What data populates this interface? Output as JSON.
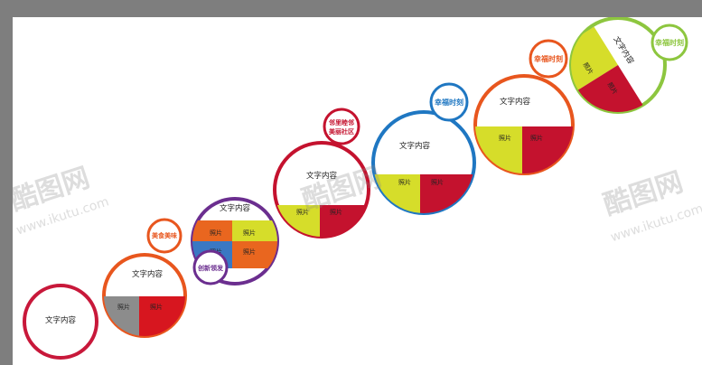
{
  "watermark": {
    "brand": "酷图网",
    "url": "www.ikutu.com"
  },
  "bubbles": [
    {
      "id": 1,
      "color": "#c8183a",
      "text": "文字内容",
      "photos": []
    },
    {
      "id": 2,
      "color": "#e8561e",
      "text": "文字内容",
      "tag": "美食美味",
      "photos": [
        "照片",
        "照片"
      ],
      "photo_colors": [
        "#8c8c8c",
        "#d7161f"
      ]
    },
    {
      "id": 3,
      "color": "#6b2e8f",
      "text": "文字内容",
      "tag": "创新领发",
      "photos": [
        "照片",
        "照片",
        "照片",
        "照片"
      ],
      "photo_colors": [
        "#e9661f",
        "#d6dd2a",
        "#3a78c3",
        "#e9661f"
      ]
    },
    {
      "id": 4,
      "color": "#c4122e",
      "text": "文字内容",
      "tag_lines": [
        "邻里睦邻",
        "美丽社区"
      ],
      "photos": [
        "照片",
        "照片"
      ],
      "photo_colors": [
        "#d6dd2a",
        "#c4122e"
      ]
    },
    {
      "id": 5,
      "color": "#1f77c2",
      "text": "文字内容",
      "tag": "幸福时刻",
      "photos": [
        "照片",
        "照片"
      ],
      "photo_colors": [
        "#d6dd2a",
        "#c4122e"
      ]
    },
    {
      "id": 6,
      "color": "#e8561e",
      "text": "文字内容",
      "tag": "幸福时刻",
      "photos": [
        "照片",
        "照片"
      ],
      "photo_colors": [
        "#d6dd2a",
        "#c4122e"
      ]
    },
    {
      "id": 7,
      "color": "#8dc63f",
      "text": "文字内容",
      "tag": "幸福时刻",
      "photos": [
        "照片",
        "照片"
      ],
      "photo_colors": [
        "#d6dd2a",
        "#c4122e"
      ]
    }
  ]
}
